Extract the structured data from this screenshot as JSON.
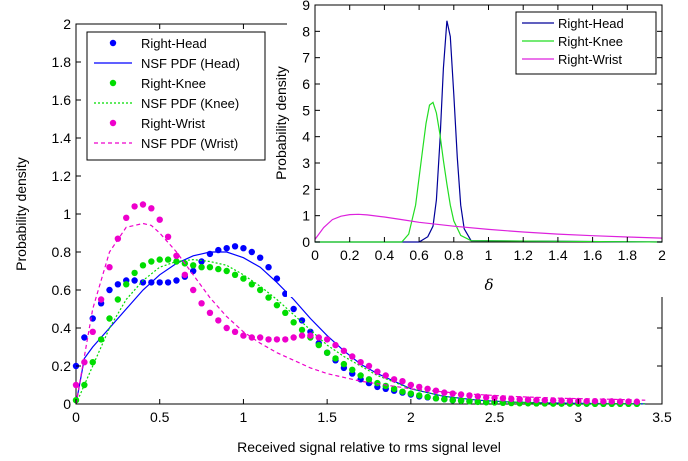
{
  "chart_data": [
    {
      "type": "scatter",
      "xlabel": "Received signal relative to rms signal level",
      "ylabel": "Probability density",
      "xlim": [
        0,
        3.5
      ],
      "ylim": [
        0,
        2
      ],
      "xticks": [
        "0",
        "0.5",
        "1",
        "1.5",
        "2",
        "2.5",
        "3",
        "3.5"
      ],
      "yticks": [
        "0",
        "0.2",
        "0.4",
        "0.6",
        "0.8",
        "1",
        "1.2",
        "1.4",
        "1.6",
        "1.8",
        "2"
      ],
      "legend_position": "top-left",
      "series": [
        {
          "name": "Right-Head",
          "kind": "markers",
          "color": "#0000ff",
          "x": [
            0.0,
            0.05,
            0.1,
            0.15,
            0.2,
            0.25,
            0.3,
            0.35,
            0.4,
            0.45,
            0.5,
            0.55,
            0.6,
            0.65,
            0.7,
            0.75,
            0.8,
            0.85,
            0.9,
            0.95,
            1.0,
            1.05,
            1.1,
            1.15,
            1.2,
            1.25,
            1.3,
            1.35,
            1.4,
            1.45,
            1.5,
            1.55,
            1.6,
            1.65,
            1.7,
            1.75,
            1.8,
            1.85,
            1.9,
            1.95,
            2.0,
            2.05,
            2.1,
            2.15,
            2.2,
            2.25,
            2.3,
            2.35,
            2.4,
            2.45,
            2.5,
            2.55,
            2.6,
            2.65,
            2.7,
            2.75,
            2.8,
            2.85,
            2.9,
            2.95,
            3.0,
            3.05,
            3.1,
            3.15,
            3.2,
            3.25,
            3.3,
            3.35
          ],
          "y": [
            0.2,
            0.35,
            0.45,
            0.53,
            0.6,
            0.63,
            0.65,
            0.65,
            0.64,
            0.64,
            0.64,
            0.64,
            0.65,
            0.67,
            0.7,
            0.75,
            0.79,
            0.81,
            0.82,
            0.83,
            0.82,
            0.8,
            0.77,
            0.72,
            0.66,
            0.58,
            0.5,
            0.44,
            0.38,
            0.32,
            0.27,
            0.23,
            0.19,
            0.16,
            0.13,
            0.11,
            0.09,
            0.08,
            0.07,
            0.06,
            0.05,
            0.04,
            0.035,
            0.03,
            0.025,
            0.02,
            0.018,
            0.015,
            0.012,
            0.01,
            0.01,
            0.008,
            0.007,
            0.006,
            0.005,
            0.005,
            0.004,
            0.004,
            0.003,
            0.003,
            0.003,
            0.002,
            0.002,
            0.002,
            0.002,
            0.002,
            0.002,
            0.002
          ]
        },
        {
          "name": "NSF PDF (Head)",
          "kind": "line",
          "dash": "",
          "color": "#0000ff",
          "x": [
            0.0,
            0.05,
            0.1,
            0.2,
            0.3,
            0.4,
            0.5,
            0.6,
            0.7,
            0.75,
            0.8,
            0.9,
            1.0,
            1.1,
            1.2,
            1.3,
            1.4,
            1.5,
            1.6,
            1.7,
            1.8,
            2.0,
            2.2,
            2.4,
            2.6,
            2.8,
            3.0,
            3.2,
            3.4
          ],
          "y": [
            0.0,
            0.24,
            0.3,
            0.4,
            0.5,
            0.6,
            0.68,
            0.74,
            0.78,
            0.79,
            0.8,
            0.8,
            0.77,
            0.72,
            0.64,
            0.55,
            0.45,
            0.36,
            0.28,
            0.21,
            0.16,
            0.08,
            0.04,
            0.02,
            0.01,
            0.006,
            0.003,
            0.002,
            0.001
          ]
        },
        {
          "name": "Right-Knee",
          "kind": "markers",
          "color": "#00dd00",
          "x": [
            0.0,
            0.05,
            0.1,
            0.15,
            0.2,
            0.25,
            0.3,
            0.35,
            0.4,
            0.45,
            0.5,
            0.55,
            0.6,
            0.65,
            0.7,
            0.75,
            0.8,
            0.85,
            0.9,
            0.95,
            1.0,
            1.05,
            1.1,
            1.15,
            1.2,
            1.25,
            1.3,
            1.35,
            1.4,
            1.45,
            1.5,
            1.55,
            1.6,
            1.65,
            1.7,
            1.75,
            1.8,
            1.85,
            1.9,
            1.95,
            2.0,
            2.05,
            2.1,
            2.15,
            2.2,
            2.25,
            2.3,
            2.35,
            2.4,
            2.45,
            2.5,
            2.55,
            2.6,
            2.65,
            2.7,
            2.75,
            2.8,
            2.85,
            2.9,
            2.95,
            3.0,
            3.05,
            3.1,
            3.15,
            3.2,
            3.25,
            3.3,
            3.35
          ],
          "y": [
            0.02,
            0.1,
            0.22,
            0.34,
            0.45,
            0.55,
            0.63,
            0.69,
            0.73,
            0.75,
            0.76,
            0.76,
            0.75,
            0.74,
            0.73,
            0.72,
            0.72,
            0.71,
            0.7,
            0.68,
            0.66,
            0.63,
            0.6,
            0.56,
            0.52,
            0.48,
            0.43,
            0.39,
            0.35,
            0.31,
            0.27,
            0.24,
            0.21,
            0.18,
            0.15,
            0.13,
            0.11,
            0.095,
            0.08,
            0.065,
            0.055,
            0.045,
            0.037,
            0.03,
            0.025,
            0.02,
            0.017,
            0.014,
            0.011,
            0.009,
            0.008,
            0.006,
            0.005,
            0.004,
            0.004,
            0.003,
            0.003,
            0.002,
            0.002,
            0.002,
            0.002,
            0.002,
            0.001,
            0.001,
            0.001,
            0.001,
            0.001,
            0.001
          ]
        },
        {
          "name": "NSF PDF (Knee)",
          "kind": "line",
          "dash": "2,2",
          "color": "#00dd00",
          "x": [
            0.0,
            0.1,
            0.2,
            0.3,
            0.4,
            0.5,
            0.6,
            0.7,
            0.8,
            0.9,
            1.0,
            1.1,
            1.2,
            1.3,
            1.4,
            1.5,
            1.6,
            1.8,
            2.0,
            2.2,
            2.4,
            2.6,
            2.8,
            3.0,
            3.4
          ],
          "y": [
            0.0,
            0.2,
            0.4,
            0.55,
            0.65,
            0.72,
            0.75,
            0.76,
            0.75,
            0.73,
            0.68,
            0.62,
            0.55,
            0.47,
            0.39,
            0.31,
            0.25,
            0.15,
            0.08,
            0.04,
            0.02,
            0.01,
            0.005,
            0.002,
            0.001
          ]
        },
        {
          "name": "Right-Wrist",
          "kind": "markers",
          "color": "#ee00cc",
          "x": [
            0.0,
            0.05,
            0.1,
            0.15,
            0.2,
            0.25,
            0.3,
            0.35,
            0.4,
            0.45,
            0.5,
            0.55,
            0.6,
            0.65,
            0.7,
            0.75,
            0.8,
            0.85,
            0.9,
            0.95,
            1.0,
            1.05,
            1.1,
            1.15,
            1.2,
            1.25,
            1.3,
            1.35,
            1.4,
            1.45,
            1.5,
            1.55,
            1.6,
            1.65,
            1.7,
            1.75,
            1.8,
            1.85,
            1.9,
            1.95,
            2.0,
            2.05,
            2.1,
            2.15,
            2.2,
            2.25,
            2.3,
            2.35,
            2.4,
            2.45,
            2.5,
            2.55,
            2.6,
            2.65,
            2.7,
            2.75,
            2.8,
            2.85,
            2.9,
            2.95,
            3.0,
            3.05,
            3.1,
            3.15,
            3.2,
            3.25,
            3.3,
            3.35
          ],
          "y": [
            0.1,
            0.22,
            0.38,
            0.55,
            0.72,
            0.87,
            0.98,
            1.04,
            1.05,
            1.03,
            0.97,
            0.88,
            0.78,
            0.68,
            0.6,
            0.53,
            0.48,
            0.44,
            0.4,
            0.38,
            0.36,
            0.35,
            0.35,
            0.34,
            0.34,
            0.34,
            0.35,
            0.36,
            0.36,
            0.35,
            0.34,
            0.31,
            0.28,
            0.25,
            0.22,
            0.2,
            0.17,
            0.15,
            0.13,
            0.12,
            0.1,
            0.09,
            0.08,
            0.07,
            0.06,
            0.055,
            0.05,
            0.045,
            0.04,
            0.035,
            0.032,
            0.03,
            0.027,
            0.025,
            0.023,
            0.021,
            0.02,
            0.019,
            0.018,
            0.017,
            0.016,
            0.015,
            0.015,
            0.014,
            0.014,
            0.013,
            0.013,
            0.012
          ]
        },
        {
          "name": "NSF PDF (Wrist)",
          "kind": "line",
          "dash": "4,3",
          "color": "#ee00cc",
          "x": [
            0.0,
            0.1,
            0.2,
            0.3,
            0.4,
            0.45,
            0.5,
            0.6,
            0.7,
            0.8,
            0.9,
            1.0,
            1.1,
            1.2,
            1.3,
            1.4,
            1.5,
            1.7,
            2.0,
            2.3,
            2.6,
            2.9,
            3.2,
            3.4
          ],
          "y": [
            0.0,
            0.5,
            0.8,
            0.93,
            0.95,
            0.94,
            0.9,
            0.8,
            0.68,
            0.56,
            0.46,
            0.38,
            0.32,
            0.27,
            0.23,
            0.19,
            0.16,
            0.12,
            0.08,
            0.055,
            0.04,
            0.03,
            0.025,
            0.02
          ]
        }
      ]
    },
    {
      "type": "line",
      "xlabel": "δ",
      "ylabel": "Probability density",
      "xlim": [
        0,
        2
      ],
      "ylim": [
        0,
        9
      ],
      "xticks": [
        "0",
        "0.2",
        "0.4",
        "0.6",
        "0.8",
        "1",
        "1.2",
        "1.4",
        "1.6",
        "1.8",
        "2"
      ],
      "yticks": [
        "0",
        "1",
        "2",
        "3",
        "4",
        "5",
        "6",
        "7",
        "8",
        "9"
      ],
      "legend_position": "top-right",
      "series": [
        {
          "name": "Right-Head",
          "color": "#000099",
          "x": [
            0.0,
            0.6,
            0.65,
            0.68,
            0.7,
            0.72,
            0.74,
            0.76,
            0.78,
            0.8,
            0.82,
            0.84,
            0.86,
            0.9,
            2.0
          ],
          "y": [
            0,
            0,
            0.2,
            0.6,
            1.6,
            3.8,
            6.6,
            8.4,
            7.8,
            5.6,
            3.2,
            1.4,
            0.5,
            0.05,
            0
          ]
        },
        {
          "name": "Right-Knee",
          "color": "#22dd22",
          "x": [
            0.0,
            0.5,
            0.54,
            0.58,
            0.62,
            0.64,
            0.66,
            0.68,
            0.7,
            0.72,
            0.74,
            0.76,
            0.78,
            0.8,
            0.84,
            0.9,
            2.0
          ],
          "y": [
            0,
            0,
            0.3,
            1.4,
            3.5,
            4.5,
            5.2,
            5.3,
            4.9,
            4.1,
            3.1,
            2.2,
            1.4,
            0.8,
            0.25,
            0.05,
            0
          ]
        },
        {
          "name": "Right-Wrist",
          "color": "#dd22dd",
          "x": [
            0.0,
            0.05,
            0.1,
            0.15,
            0.2,
            0.25,
            0.3,
            0.4,
            0.5,
            0.6,
            0.8,
            1.0,
            1.2,
            1.4,
            1.6,
            1.8,
            2.0
          ],
          "y": [
            0.1,
            0.55,
            0.85,
            0.98,
            1.04,
            1.05,
            1.03,
            0.95,
            0.85,
            0.75,
            0.6,
            0.48,
            0.38,
            0.3,
            0.24,
            0.19,
            0.15
          ]
        }
      ]
    }
  ]
}
